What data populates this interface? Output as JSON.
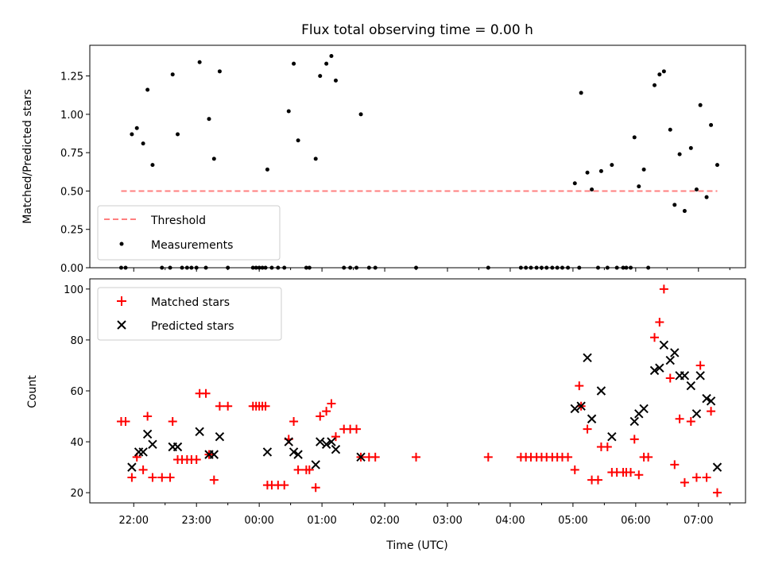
{
  "chart_data": {
    "title": "Flux total observing time = 0.00 h",
    "xlabel": "Time (UTC)",
    "xticks": [
      "22:00",
      "23:00",
      "00:00",
      "01:00",
      "02:00",
      "03:00",
      "04:00",
      "05:00",
      "06:00",
      "07:00"
    ],
    "xlim_hours": [
      -2.7,
      7.75
    ],
    "panels": [
      {
        "type": "scatter",
        "ylabel": "Matched/Predicted stars",
        "ylim": [
          0,
          1.45
        ],
        "yticks": [
          "0.00",
          "0.25",
          "0.50",
          "0.75",
          "1.00",
          "1.25"
        ],
        "legend_position": "lower-left",
        "legend": [
          "Threshold",
          "Measurements"
        ],
        "threshold": {
          "name": "Threshold",
          "value": 0.5,
          "x_range": [
            -2.2,
            7.3
          ],
          "color": "#ff7f7f"
        },
        "series": [
          {
            "name": "Measurements",
            "color": "#000000",
            "points": [
              [
                -2.2,
                0
              ],
              [
                -2.13,
                0
              ],
              [
                -2.03,
                0.87
              ],
              [
                -1.95,
                0.91
              ],
              [
                -1.85,
                0.81
              ],
              [
                -1.78,
                1.16
              ],
              [
                -1.7,
                0.67
              ],
              [
                -1.55,
                0
              ],
              [
                -1.42,
                0
              ],
              [
                -1.38,
                1.26
              ],
              [
                -1.3,
                0.87
              ],
              [
                -1.23,
                0
              ],
              [
                -1.15,
                0
              ],
              [
                -1.08,
                0
              ],
              [
                -1.0,
                0
              ],
              [
                -0.95,
                1.34
              ],
              [
                -0.85,
                0
              ],
              [
                -0.8,
                0.97
              ],
              [
                -0.72,
                0.71
              ],
              [
                -0.63,
                1.28
              ],
              [
                -0.5,
                0
              ],
              [
                -0.1,
                0
              ],
              [
                -0.05,
                0
              ],
              [
                0.0,
                0
              ],
              [
                0.05,
                0
              ],
              [
                0.1,
                0
              ],
              [
                0.13,
                0.64
              ],
              [
                0.2,
                0
              ],
              [
                0.3,
                0
              ],
              [
                0.4,
                0
              ],
              [
                0.47,
                1.02
              ],
              [
                0.55,
                1.33
              ],
              [
                0.62,
                0.83
              ],
              [
                0.75,
                0
              ],
              [
                0.8,
                0
              ],
              [
                0.9,
                0.71
              ],
              [
                0.97,
                1.25
              ],
              [
                1.07,
                1.33
              ],
              [
                1.15,
                1.38
              ],
              [
                1.22,
                1.22
              ],
              [
                1.35,
                0
              ],
              [
                1.45,
                0
              ],
              [
                1.55,
                0
              ],
              [
                1.62,
                1.0
              ],
              [
                1.75,
                0
              ],
              [
                1.85,
                0
              ],
              [
                2.5,
                0
              ],
              [
                3.65,
                0
              ],
              [
                4.17,
                0
              ],
              [
                4.25,
                0
              ],
              [
                4.33,
                0
              ],
              [
                4.42,
                0
              ],
              [
                4.5,
                0
              ],
              [
                4.58,
                0
              ],
              [
                4.67,
                0
              ],
              [
                4.75,
                0
              ],
              [
                4.83,
                0
              ],
              [
                4.92,
                0
              ],
              [
                5.03,
                0.55
              ],
              [
                5.1,
                0
              ],
              [
                5.13,
                1.14
              ],
              [
                5.23,
                0.62
              ],
              [
                5.3,
                0.51
              ],
              [
                5.4,
                0
              ],
              [
                5.45,
                0.63
              ],
              [
                5.55,
                0
              ],
              [
                5.62,
                0.67
              ],
              [
                5.7,
                0
              ],
              [
                5.8,
                0
              ],
              [
                5.85,
                0
              ],
              [
                5.92,
                0
              ],
              [
                5.98,
                0.85
              ],
              [
                6.05,
                0.53
              ],
              [
                6.13,
                0.64
              ],
              [
                6.2,
                0
              ],
              [
                6.3,
                1.19
              ],
              [
                6.38,
                1.26
              ],
              [
                6.45,
                1.28
              ],
              [
                6.55,
                0.9
              ],
              [
                6.62,
                0.41
              ],
              [
                6.7,
                0.74
              ],
              [
                6.78,
                0.37
              ],
              [
                6.88,
                0.78
              ],
              [
                6.97,
                0.51
              ],
              [
                7.03,
                1.06
              ],
              [
                7.13,
                0.46
              ],
              [
                7.2,
                0.93
              ],
              [
                7.3,
                0.67
              ]
            ]
          }
        ]
      },
      {
        "type": "scatter",
        "ylabel": "Count",
        "ylim": [
          16,
          104
        ],
        "yticks": [
          "20",
          "40",
          "60",
          "80",
          "100"
        ],
        "legend_position": "upper-left",
        "legend": [
          "Matched stars",
          "Predicted stars"
        ],
        "series": [
          {
            "name": "Matched stars",
            "marker": "plus",
            "color": "#ff0000",
            "points": [
              [
                -2.2,
                48
              ],
              [
                -2.13,
                48
              ],
              [
                -2.03,
                26
              ],
              [
                -1.95,
                34
              ],
              [
                -1.85,
                29
              ],
              [
                -1.78,
                50
              ],
              [
                -1.7,
                26
              ],
              [
                -1.55,
                26
              ],
              [
                -1.42,
                26
              ],
              [
                -1.38,
                48
              ],
              [
                -1.3,
                33
              ],
              [
                -1.23,
                33
              ],
              [
                -1.15,
                33
              ],
              [
                -1.08,
                33
              ],
              [
                -1.0,
                33
              ],
              [
                -0.95,
                59
              ],
              [
                -0.85,
                59
              ],
              [
                -0.8,
                35
              ],
              [
                -0.72,
                25
              ],
              [
                -0.63,
                54
              ],
              [
                -0.5,
                54
              ],
              [
                -0.1,
                54
              ],
              [
                -0.05,
                54
              ],
              [
                0.0,
                54
              ],
              [
                0.05,
                54
              ],
              [
                0.1,
                54
              ],
              [
                0.13,
                23
              ],
              [
                0.2,
                23
              ],
              [
                0.3,
                23
              ],
              [
                0.4,
                23
              ],
              [
                0.47,
                41
              ],
              [
                0.55,
                48
              ],
              [
                0.62,
                29
              ],
              [
                0.75,
                29
              ],
              [
                0.8,
                29
              ],
              [
                0.9,
                22
              ],
              [
                0.97,
                50
              ],
              [
                1.07,
                52
              ],
              [
                1.15,
                55
              ],
              [
                1.22,
                42
              ],
              [
                1.35,
                45
              ],
              [
                1.45,
                45
              ],
              [
                1.55,
                45
              ],
              [
                1.62,
                34
              ],
              [
                1.75,
                34
              ],
              [
                1.85,
                34
              ],
              [
                2.5,
                34
              ],
              [
                3.65,
                34
              ],
              [
                4.17,
                34
              ],
              [
                4.25,
                34
              ],
              [
                4.33,
                34
              ],
              [
                4.42,
                34
              ],
              [
                4.5,
                34
              ],
              [
                4.58,
                34
              ],
              [
                4.67,
                34
              ],
              [
                4.75,
                34
              ],
              [
                4.83,
                34
              ],
              [
                4.92,
                34
              ],
              [
                5.03,
                29
              ],
              [
                5.1,
                62
              ],
              [
                5.13,
                54
              ],
              [
                5.23,
                45
              ],
              [
                5.3,
                25
              ],
              [
                5.4,
                25
              ],
              [
                5.45,
                38
              ],
              [
                5.55,
                38
              ],
              [
                5.62,
                28
              ],
              [
                5.7,
                28
              ],
              [
                5.8,
                28
              ],
              [
                5.85,
                28
              ],
              [
                5.92,
                28
              ],
              [
                5.98,
                41
              ],
              [
                6.05,
                27
              ],
              [
                6.13,
                34
              ],
              [
                6.2,
                34
              ],
              [
                6.3,
                81
              ],
              [
                6.38,
                87
              ],
              [
                6.45,
                100
              ],
              [
                6.55,
                65
              ],
              [
                6.62,
                31
              ],
              [
                6.7,
                49
              ],
              [
                6.78,
                24
              ],
              [
                6.88,
                48
              ],
              [
                6.97,
                26
              ],
              [
                7.03,
                70
              ],
              [
                7.13,
                26
              ],
              [
                7.2,
                52
              ],
              [
                7.3,
                20
              ]
            ]
          },
          {
            "name": "Predicted stars",
            "marker": "x",
            "color": "#000000",
            "points": [
              [
                -2.03,
                30
              ],
              [
                -1.92,
                36
              ],
              [
                -1.85,
                36
              ],
              [
                -1.78,
                43
              ],
              [
                -1.7,
                39
              ],
              [
                -1.38,
                38
              ],
              [
                -1.3,
                38
              ],
              [
                -0.95,
                44
              ],
              [
                -0.8,
                35
              ],
              [
                -0.72,
                35
              ],
              [
                -0.63,
                42
              ],
              [
                0.13,
                36
              ],
              [
                0.47,
                40
              ],
              [
                0.55,
                36
              ],
              [
                0.62,
                35
              ],
              [
                0.9,
                31
              ],
              [
                0.97,
                40
              ],
              [
                1.07,
                39
              ],
              [
                1.15,
                40
              ],
              [
                1.22,
                37
              ],
              [
                1.62,
                34
              ],
              [
                5.03,
                53
              ],
              [
                5.13,
                54
              ],
              [
                5.23,
                73
              ],
              [
                5.3,
                49
              ],
              [
                5.45,
                60
              ],
              [
                5.62,
                42
              ],
              [
                5.98,
                48
              ],
              [
                6.05,
                51
              ],
              [
                6.13,
                53
              ],
              [
                6.3,
                68
              ],
              [
                6.38,
                69
              ],
              [
                6.45,
                78
              ],
              [
                6.55,
                72
              ],
              [
                6.62,
                75
              ],
              [
                6.7,
                66
              ],
              [
                6.78,
                66
              ],
              [
                6.88,
                62
              ],
              [
                6.97,
                51
              ],
              [
                7.03,
                66
              ],
              [
                7.13,
                57
              ],
              [
                7.2,
                56
              ],
              [
                7.3,
                30
              ]
            ]
          }
        ]
      }
    ]
  }
}
